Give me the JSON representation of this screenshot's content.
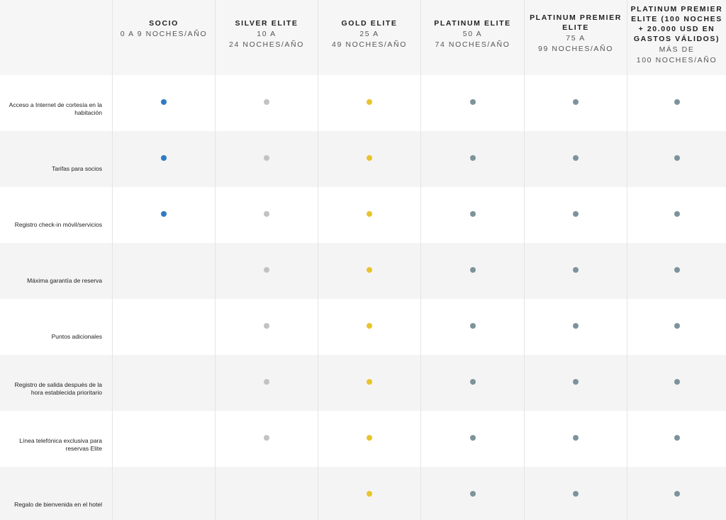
{
  "colors": {
    "socio": "#2e7bc4",
    "silver": "#c2c2c2",
    "gold": "#e8c42d",
    "platinum": "#7d939b",
    "platinum_premier": "#7d939b",
    "platinum_premier_plus": "#7d939b"
  },
  "header": {
    "tiers": [
      {
        "name": "SOCIO",
        "range": "0 A 9 NOCHES/AÑO"
      },
      {
        "name": "SILVER ELITE",
        "range_line1": "10 A",
        "range_line2": "24 NOCHES/AÑO"
      },
      {
        "name": "GOLD ELITE",
        "range_line1": "25 A",
        "range_line2": "49 NOCHES/AÑO"
      },
      {
        "name": "PLATINUM ELITE",
        "range_line1": "50 A",
        "range_line2": "74 NOCHES/AÑO"
      },
      {
        "name_line1": "PLATINUM PREMIER",
        "name_line2": "ELITE",
        "range_line1": "75 A",
        "range_line2": "99 NOCHES/AÑO"
      },
      {
        "name_line1": "PLATINUM PREMIER",
        "name_line2": "ELITE (100 NOCHES",
        "name_line3": "+ 20.000 USD EN",
        "name_line4": "GASTOS VÁLIDOS)",
        "range_line1": "MÁS DE",
        "range_line2": "100 NOCHES/AÑO"
      }
    ]
  },
  "rows": [
    {
      "label": "Acceso a Internet de cortesía en la habitación",
      "tiers": [
        true,
        true,
        true,
        true,
        true,
        true
      ]
    },
    {
      "label": "Tarifas para socios",
      "tiers": [
        true,
        true,
        true,
        true,
        true,
        true
      ]
    },
    {
      "label": "Registro check-in móvil/servicios",
      "tiers": [
        true,
        true,
        true,
        true,
        true,
        true
      ]
    },
    {
      "label": "Máxima garantía de reserva",
      "tiers": [
        false,
        true,
        true,
        true,
        true,
        true
      ]
    },
    {
      "label": "Puntos adicionales",
      "tiers": [
        false,
        true,
        true,
        true,
        true,
        true
      ]
    },
    {
      "label": "Registro de salida después de la hora establecida prioritario",
      "tiers": [
        false,
        true,
        true,
        true,
        true,
        true
      ]
    },
    {
      "label": "Línea telefónica exclusiva para reservas Elite",
      "tiers": [
        false,
        true,
        true,
        true,
        true,
        true
      ]
    },
    {
      "label": "Regalo de bienvenida en el hotel",
      "tiers": [
        false,
        false,
        true,
        true,
        true,
        true
      ]
    }
  ]
}
